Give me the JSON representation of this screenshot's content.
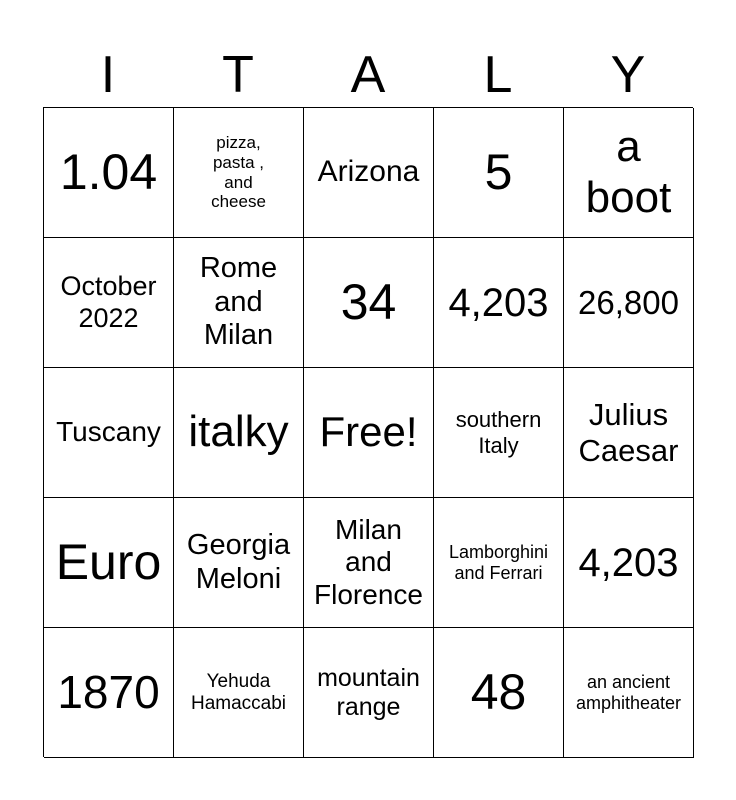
{
  "header": [
    "I",
    "T",
    "A",
    "L",
    "Y"
  ],
  "cells": [
    "1.04",
    "pizza,\npasta ,\nand\ncheese",
    "Arizona",
    "5",
    "a\nboot",
    "October\n2022",
    "Rome\nand\nMilan",
    "34",
    "4,203",
    "26,800",
    "Tuscany",
    "italky",
    "Free!",
    "southern\nItaly",
    "Julius\nCaesar",
    "Euro",
    "Georgia\nMeloni",
    "Milan\nand\nFlorence",
    "Lamborghini\nand Ferrari",
    "4,203",
    "1870",
    "Yehuda\nHamaccabi",
    "mountain\nrange",
    "48",
    "an ancient\namphitheater"
  ]
}
